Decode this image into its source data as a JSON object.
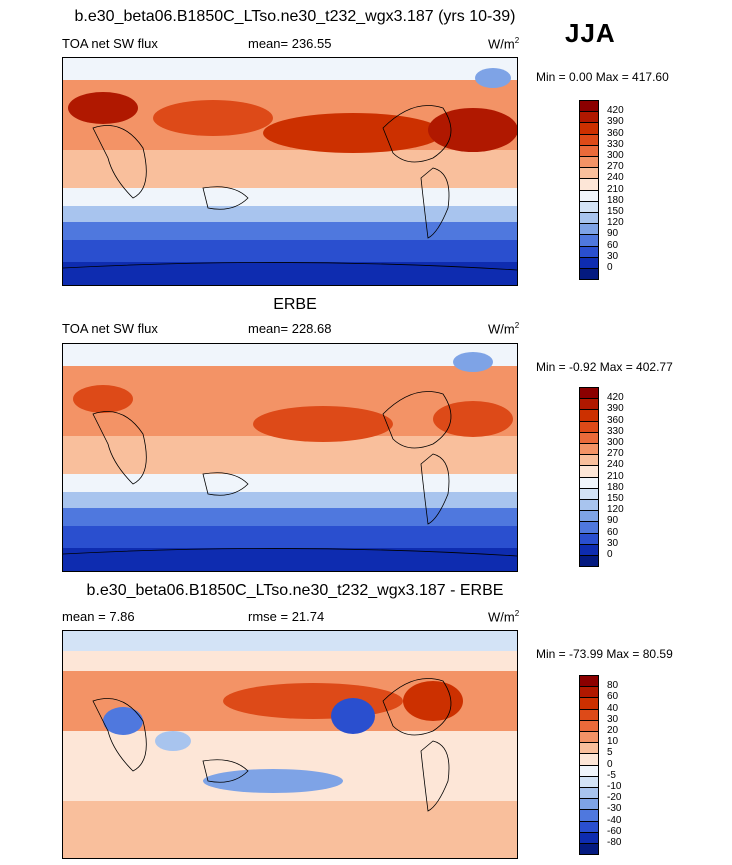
{
  "season": "JJA",
  "panels": [
    {
      "id": "model",
      "title": "b.e30_beta06.B1850C_LTso.ne30_t232_wgx3.187 (yrs 10-39)",
      "left_label": "TOA net SW flux",
      "mid_label": "mean= 236.55",
      "unit": "W/m",
      "unit_sup": "2",
      "minmax": "Min =   0.00 Max = 417.60",
      "levels": [
        "420",
        "390",
        "360",
        "330",
        "300",
        "270",
        "240",
        "210",
        "180",
        "150",
        "120",
        "90",
        "60",
        "30",
        "0"
      ],
      "colors": [
        "#8b0000",
        "#b01800",
        "#cc3000",
        "#dd4a18",
        "#ea6a3a",
        "#f39366",
        "#f9bf9c",
        "#fde6d7",
        "#f0f5fb",
        "#d3e3f6",
        "#a8c4ee",
        "#7ea3e6",
        "#4f78de",
        "#2a4fcf",
        "#0e2cb0",
        "#041a80"
      ]
    },
    {
      "id": "obs",
      "title": "ERBE",
      "left_label": "TOA net SW flux",
      "mid_label": "mean= 228.68",
      "unit": "W/m",
      "unit_sup": "2",
      "minmax": "Min =  -0.92 Max = 402.77",
      "levels": [
        "420",
        "390",
        "360",
        "330",
        "300",
        "270",
        "240",
        "210",
        "180",
        "150",
        "120",
        "90",
        "60",
        "30",
        "0"
      ],
      "colors": [
        "#8b0000",
        "#b01800",
        "#cc3000",
        "#dd4a18",
        "#ea6a3a",
        "#f39366",
        "#f9bf9c",
        "#fde6d7",
        "#f0f5fb",
        "#d3e3f6",
        "#a8c4ee",
        "#7ea3e6",
        "#4f78de",
        "#2a4fcf",
        "#0e2cb0",
        "#041a80"
      ]
    },
    {
      "id": "diff",
      "title": "b.e30_beta06.B1850C_LTso.ne30_t232_wgx3.187 - ERBE",
      "left_label": "mean =   7.86",
      "mid_label": "rmse =  21.74",
      "unit": "W/m",
      "unit_sup": "2",
      "minmax": "Min = -73.99 Max =  80.59",
      "levels": [
        "80",
        "60",
        "40",
        "30",
        "20",
        "10",
        "5",
        "0",
        "-5",
        "-10",
        "-20",
        "-30",
        "-40",
        "-60",
        "-80"
      ],
      "colors": [
        "#8b0000",
        "#b01800",
        "#cc3000",
        "#dd4a18",
        "#ea6a3a",
        "#f39366",
        "#f9bf9c",
        "#fde6d7",
        "#f0f5fb",
        "#d3e3f6",
        "#a8c4ee",
        "#7ea3e6",
        "#4f78de",
        "#2a4fcf",
        "#0e2cb0",
        "#041a80"
      ]
    }
  ]
}
